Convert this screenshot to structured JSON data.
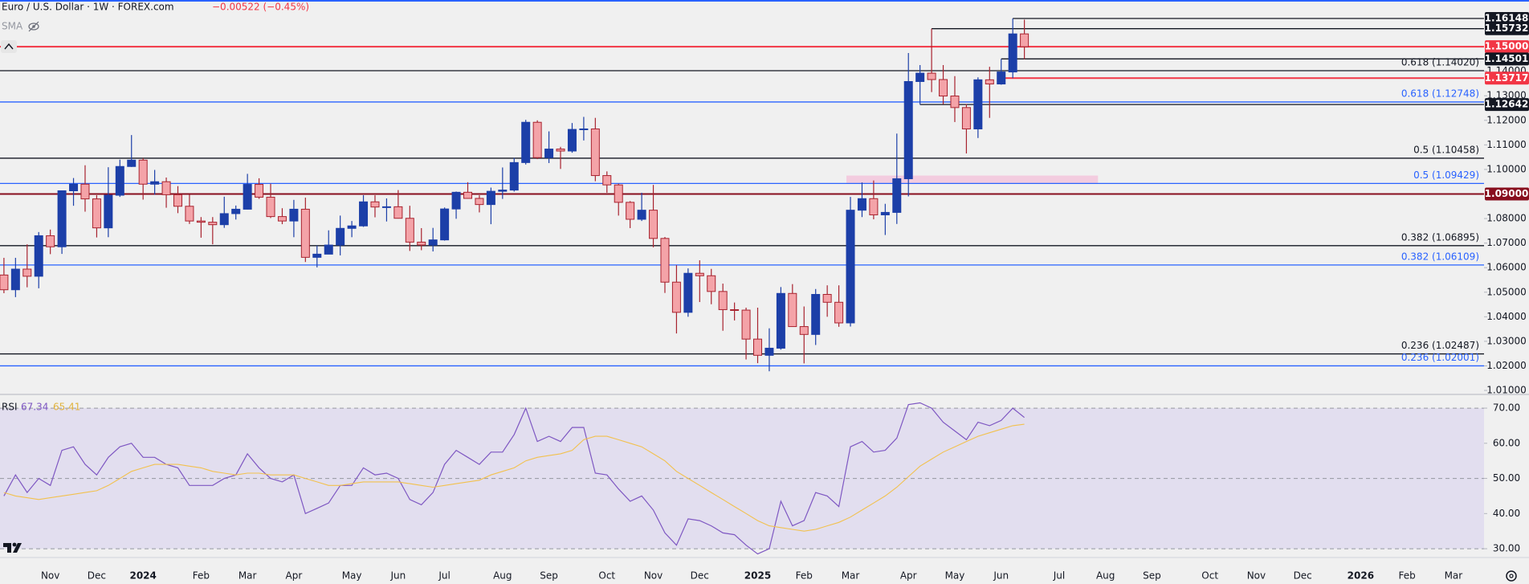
{
  "header": {
    "symbol": "Euro / U.S. Dollar · 1W · FOREX.com",
    "change": "−0.00522 (−0.45%)",
    "indicator": "SMA"
  },
  "chart_data": [
    {
      "type": "candlestick",
      "up_color": "#1c3fa8",
      "down_color": "#f4a3a8",
      "down_border": "#a8232f",
      "ylim": [
        1.0087,
        1.169
      ],
      "yticks": [
        {
          "value": 1.01,
          "label": "1.01000"
        },
        {
          "value": 1.02,
          "label": "1.02000"
        },
        {
          "value": 1.03,
          "label": "1.03000"
        },
        {
          "value": 1.04,
          "label": "1.04000"
        },
        {
          "value": 1.05,
          "label": "1.05000"
        },
        {
          "value": 1.06,
          "label": "1.06000"
        },
        {
          "value": 1.07,
          "label": "1.07000"
        },
        {
          "value": 1.08,
          "label": "1.08000"
        },
        {
          "value": 1.1,
          "label": "1.10000"
        },
        {
          "value": 1.11,
          "label": "1.11000"
        },
        {
          "value": 1.12,
          "label": "1.12000"
        },
        {
          "value": 1.13,
          "label": "1.13000"
        },
        {
          "value": 1.14,
          "label": "1.14000"
        }
      ],
      "x_labels": [
        "Nov",
        "Dec",
        "2024",
        "Feb",
        "Mar",
        "Apr",
        "May",
        "Jun",
        "Jul",
        "Aug",
        "Sep",
        "Oct",
        "Nov",
        "Dec",
        "2025",
        "Feb",
        "Mar",
        "Apr",
        "May",
        "Jun",
        "Jul",
        "Aug",
        "Sep",
        "Oct",
        "Nov",
        "Dec",
        "2026",
        "Feb",
        "Mar"
      ],
      "open": [
        1.057,
        1.051,
        1.0594,
        1.0565,
        1.073,
        1.0685,
        1.0913,
        1.094,
        1.088,
        1.0762,
        1.0895,
        1.1012,
        1.1038,
        1.094,
        1.095,
        1.0897,
        1.085,
        1.079,
        1.0785,
        1.0775,
        1.082,
        1.0838,
        1.0939,
        1.0887,
        1.0808,
        1.079,
        1.0838,
        1.0642,
        1.0655,
        1.0692,
        1.076,
        1.077,
        1.0868,
        1.0847,
        1.0848,
        1.0801,
        1.0704,
        1.0692,
        1.0713,
        1.0839,
        1.0907,
        1.0882,
        1.0857,
        1.0911,
        1.0916,
        1.1028,
        1.1192,
        1.1048,
        1.1083,
        1.1075,
        1.1163,
        1.1165,
        1.0975,
        1.0937,
        1.0866,
        1.0797,
        1.0834,
        1.0719,
        1.0541,
        1.0418,
        1.0577,
        1.0567,
        1.0503,
        1.0429,
        1.0427,
        1.0309,
        1.0243,
        1.0272,
        1.0495,
        1.036,
        1.0328,
        1.0491,
        1.0459,
        1.0375,
        1.0834,
        1.0881,
        1.0815,
        1.0825,
        1.0962,
        1.1358,
        1.1392,
        1.1366,
        1.1299,
        1.1252,
        1.1165,
        1.1365,
        1.1348,
        1.1397,
        1.1552
      ],
      "high": [
        1.064,
        1.064,
        1.0695,
        1.0745,
        1.0755,
        1.0914,
        1.0965,
        1.1017,
        1.0895,
        1.1009,
        1.104,
        1.114,
        1.1046,
        1.0998,
        1.0967,
        1.0932,
        1.0897,
        1.0806,
        1.0806,
        1.0889,
        1.0853,
        1.0982,
        1.0964,
        1.0942,
        1.0842,
        1.0876,
        1.0885,
        1.069,
        1.0752,
        1.0812,
        1.079,
        1.0895,
        1.0895,
        1.0882,
        1.0916,
        1.0852,
        1.0761,
        1.0762,
        1.0845,
        1.091,
        1.0948,
        1.0895,
        1.0926,
        1.1008,
        1.1047,
        1.1202,
        1.12,
        1.1155,
        1.1092,
        1.1189,
        1.1214,
        1.121,
        1.0992,
        1.0942,
        1.0871,
        1.0905,
        1.0937,
        1.0725,
        1.061,
        1.0597,
        1.063,
        1.0595,
        1.0535,
        1.0458,
        1.0437,
        1.0437,
        1.0353,
        1.0521,
        1.0533,
        1.0442,
        1.0513,
        1.0528,
        1.0528,
        1.0888,
        1.0947,
        1.0955,
        1.086,
        1.1146,
        1.1474,
        1.1425,
        1.15732,
        1.1425,
        1.138,
        1.1266,
        1.1375,
        1.1418,
        1.14501,
        1.16148,
        1.161
      ],
      "low": [
        1.0496,
        1.048,
        1.052,
        1.0516,
        1.0655,
        1.0656,
        1.0852,
        1.0828,
        1.0723,
        1.0724,
        1.0888,
        1.101,
        1.0877,
        1.0897,
        1.0844,
        1.0822,
        1.0778,
        1.0722,
        1.0695,
        1.0762,
        1.0796,
        1.0837,
        1.088,
        1.0802,
        1.0777,
        1.0724,
        1.0623,
        1.0601,
        1.0655,
        1.065,
        1.0724,
        1.0766,
        1.0805,
        1.0788,
        1.08,
        1.0668,
        1.0671,
        1.0666,
        1.071,
        1.0799,
        1.0881,
        1.0825,
        1.0777,
        1.088,
        1.091,
        1.102,
        1.1042,
        1.1026,
        1.1002,
        1.1068,
        1.1118,
        1.0952,
        1.0905,
        1.0812,
        1.0761,
        1.079,
        1.0683,
        1.0497,
        1.0332,
        1.04,
        1.046,
        1.0451,
        1.0343,
        1.0385,
        1.0226,
        1.0211,
        1.0178,
        1.0266,
        1.036,
        1.021,
        1.0285,
        1.04,
        1.0359,
        1.036,
        1.0806,
        1.0797,
        1.0733,
        1.0778,
        1.089,
        1.12642,
        1.1315,
        1.1265,
        1.1193,
        1.1065,
        1.1128,
        1.121,
        1.1345,
        1.13717,
        1.1449
      ],
      "close": [
        1.051,
        1.0594,
        1.0565,
        1.073,
        1.0685,
        1.0913,
        1.094,
        1.088,
        1.0762,
        1.0895,
        1.1012,
        1.1038,
        1.094,
        1.095,
        1.0897,
        1.085,
        1.079,
        1.0785,
        1.0775,
        1.082,
        1.0838,
        1.0939,
        1.0887,
        1.0808,
        1.079,
        1.0838,
        1.0642,
        1.0655,
        1.0692,
        1.076,
        1.077,
        1.0868,
        1.0847,
        1.0848,
        1.0801,
        1.0704,
        1.0692,
        1.0713,
        1.0839,
        1.0907,
        1.0882,
        1.0857,
        1.0911,
        1.0916,
        1.1028,
        1.1192,
        1.1048,
        1.1083,
        1.1075,
        1.1163,
        1.1165,
        1.0975,
        1.0937,
        1.0866,
        1.0797,
        1.0834,
        1.0719,
        1.0541,
        1.0418,
        1.0577,
        1.0567,
        1.0503,
        1.0429,
        1.0427,
        1.0309,
        1.0243,
        1.0272,
        1.0495,
        1.036,
        1.0328,
        1.0491,
        1.0459,
        1.0375,
        1.0834,
        1.0881,
        1.0815,
        1.0825,
        1.0962,
        1.1358,
        1.1392,
        1.1366,
        1.1299,
        1.1252,
        1.1165,
        1.1365,
        1.1348,
        1.1397,
        1.1552,
        1.14998
      ],
      "zone": {
        "low": 1.09429,
        "high": 1.0975,
        "color": "#f3c6dc"
      },
      "levels": [
        {
          "value": 1.16148,
          "color": "#131722",
          "badge": "1.16148"
        },
        {
          "value": 1.15732,
          "color": "#131722",
          "badge": "1.15732"
        },
        {
          "value": 1.15,
          "color": "#f23645",
          "badge": "1.15000"
        },
        {
          "value": 1.14501,
          "color": "#131722",
          "badge": "1.14501"
        },
        {
          "value": 1.1402,
          "color": "#131722",
          "label": "0.618 (1.14020)"
        },
        {
          "value": 1.13717,
          "color": "#f23645",
          "badge": "1.13717"
        },
        {
          "value": 1.12748,
          "color": "#2962ff",
          "label": "0.618 (1.12748)"
        },
        {
          "value": 1.12642,
          "color": "#131722",
          "badge": "1.12642"
        },
        {
          "value": 1.10458,
          "color": "#131722",
          "label": "0.5 (1.10458)"
        },
        {
          "value": 1.09429,
          "color": "#2962ff",
          "label": "0.5 (1.09429)"
        },
        {
          "value": 1.09,
          "color": "#880e1e",
          "badge": "1.09000"
        },
        {
          "value": 1.06895,
          "color": "#131722",
          "label": "0.382 (1.06895)"
        },
        {
          "value": 1.06109,
          "color": "#2962ff",
          "label": "0.382 (1.06109)"
        },
        {
          "value": 1.02487,
          "color": "#131722",
          "label": "0.236 (1.02487)"
        },
        {
          "value": 1.02001,
          "color": "#2962ff",
          "label": "0.236 (1.02001)"
        }
      ]
    },
    {
      "type": "line",
      "title": "RSI",
      "ylim": [
        27.5,
        73.9
      ],
      "yticks": [
        {
          "value": 70,
          "label": "70.00"
        },
        {
          "value": 60,
          "label": "60.00"
        },
        {
          "value": 50,
          "label": "50.00"
        },
        {
          "value": 40,
          "label": "40.00"
        },
        {
          "value": 30,
          "label": "30.00"
        }
      ],
      "band": [
        30,
        70
      ],
      "band_color": "#e0dcee",
      "dashed": [
        70,
        50,
        30
      ],
      "series": [
        {
          "color": "#7e57c2",
          "values": [
            45,
            51,
            46,
            50,
            48,
            58,
            59,
            54,
            51,
            56,
            59,
            60,
            56,
            56,
            54,
            53,
            48,
            48,
            48,
            50,
            51,
            57,
            53,
            50,
            49,
            51,
            40,
            41.5,
            43,
            48,
            48,
            53,
            51,
            51.5,
            50,
            44,
            42.5,
            46,
            54,
            58,
            56,
            54,
            57.5,
            57.5,
            62.5,
            70,
            60.5,
            62,
            60.5,
            64.5,
            64.5,
            51.5,
            51,
            47,
            43.5,
            45,
            41,
            34.5,
            31,
            38.5,
            38,
            36.5,
            34.5,
            34,
            31,
            28.5,
            30,
            43.5,
            36.5,
            38,
            46,
            45,
            42,
            59,
            60.5,
            57.5,
            58,
            61.5,
            71,
            71.5,
            70,
            66,
            63.5,
            61,
            66,
            65,
            66.5,
            70,
            67.34
          ]
        },
        {
          "color": "#f2c14e",
          "values": [
            46,
            45,
            44.5,
            44,
            44.5,
            45,
            45.5,
            46,
            46.5,
            48,
            50,
            52,
            53,
            54,
            54,
            54,
            53.5,
            53,
            52,
            51.5,
            51,
            51.5,
            51.5,
            51,
            51,
            51,
            50,
            49,
            48,
            48,
            48.5,
            49,
            49,
            49,
            49,
            48.5,
            48,
            47.5,
            48,
            48.5,
            49,
            49.5,
            51,
            52,
            53,
            55,
            56,
            56.5,
            57,
            58,
            61,
            62,
            62,
            61,
            60,
            59,
            57,
            55,
            52,
            50,
            48,
            46,
            44,
            42,
            40,
            38,
            36.5,
            36,
            35.5,
            35,
            35.5,
            36.5,
            37.5,
            39,
            41,
            43,
            45,
            47.5,
            50.5,
            53.5,
            55.5,
            57.5,
            59,
            60.5,
            62,
            63,
            64,
            65,
            65.41
          ]
        }
      ]
    }
  ]
}
